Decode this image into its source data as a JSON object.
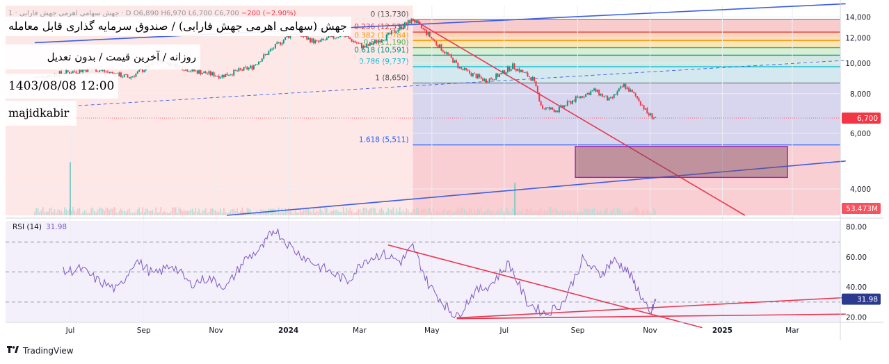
{
  "header": {
    "ticker_line": "1 · جهش سهامی اهرمی جهش فارابی · D",
    "ohlc": [
      "O6,890",
      "H6,970",
      "L6,700",
      "C6,700",
      "−200 (−2.90%)"
    ]
  },
  "overlay": {
    "title": "جهش (سهامی اهرمی جهش فارابی) / صندوق سرمایه گذاری قابل معامله",
    "subtitle": "روزانه / آخرین قیمت / بدون تعدیل",
    "datetime": "1403/08/08 12:00",
    "author": "majidkabir"
  },
  "footer": {
    "brand": "TradingView"
  },
  "colors": {
    "price_line": "#f23645",
    "trend_blue": "#3d5ee1",
    "trend_red": "#e8384f",
    "rsi_line": "#7e57c2",
    "box_stroke": "#9c27b0",
    "up": "#089981",
    "down": "#f23645"
  },
  "chart_data": [
    {
      "type": "candlestick",
      "scale": "log",
      "ylim": [
        3300,
        15200
      ],
      "y_ticks": [
        "14,000",
        "12,000",
        "10,000",
        "8,000",
        "6,000",
        "4,000"
      ],
      "y_tick_values": [
        14000,
        12000,
        10000,
        8000,
        6000,
        4000
      ],
      "x_ticks": [
        "Jul",
        "Sep",
        "Nov",
        "2024",
        "Mar",
        "May",
        "Jul",
        "Sep",
        "Nov",
        "2025",
        "Mar"
      ],
      "x_tick_dates": [
        "2023-07-01",
        "2023-09-01",
        "2023-11-01",
        "2024-01-01",
        "2024-03-01",
        "2024-05-01",
        "2024-07-01",
        "2024-09-01",
        "2024-11-01",
        "2025-01-01",
        "2025-03-01"
      ],
      "last_price_label": "6,700",
      "last_price": 6700,
      "volume_label": "53.473M",
      "path": [
        [
          "2023-06-01",
          9000
        ],
        [
          "2023-07-20",
          9600
        ],
        [
          "2023-08-20",
          9000
        ],
        [
          "2023-09-15",
          10200
        ],
        [
          "2023-10-10",
          9500
        ],
        [
          "2023-11-05",
          9100
        ],
        [
          "2023-12-01",
          9700
        ],
        [
          "2023-12-20",
          11200
        ],
        [
          "2024-01-05",
          12500
        ],
        [
          "2024-01-25",
          11600
        ],
        [
          "2024-02-15",
          12300
        ],
        [
          "2024-03-05",
          11200
        ],
        [
          "2024-03-25",
          12200
        ],
        [
          "2024-04-15",
          13730
        ],
        [
          "2024-05-05",
          11500
        ],
        [
          "2024-05-25",
          9600
        ],
        [
          "2024-06-15",
          8800
        ],
        [
          "2024-06-28",
          9200
        ],
        [
          "2024-07-08",
          9800
        ],
        [
          "2024-07-25",
          8900
        ],
        [
          "2024-08-02",
          7200
        ],
        [
          "2024-08-15",
          7100
        ],
        [
          "2024-08-30",
          7700
        ],
        [
          "2024-09-15",
          8200
        ],
        [
          "2024-09-28",
          7600
        ],
        [
          "2024-10-10",
          8500
        ],
        [
          "2024-10-22",
          7700
        ],
        [
          "2024-10-30",
          6900
        ],
        [
          "2024-11-06",
          6700
        ]
      ],
      "volume_spikes": [
        [
          "2023-07-01",
          0.85
        ],
        [
          "2024-07-10",
          0.52
        ]
      ],
      "fibonacci": [
        {
          "level": "0",
          "label": "0 (13,730)",
          "price": 13730,
          "fill": "#f7c6c6",
          "line": "#787b86",
          "label_color": "#555555"
        },
        {
          "level": "0.236",
          "label": "0.236 (12,531)",
          "price": 12531,
          "fill": "#f9d2b2",
          "line": "#e53935",
          "label_color": "#e53935"
        },
        {
          "level": "0.382",
          "label": "0.382 (11,784)",
          "price": 11784,
          "fill": "#fbe3b0",
          "line": "#ff9800",
          "label_color": "#ff9800"
        },
        {
          "level": "0.5",
          "label": "0.5 (11,190)",
          "price": 11190,
          "fill": "#d4ecd2",
          "line": "#4caf50",
          "label_color": "#4caf50"
        },
        {
          "level": "0.618",
          "label": "0.618 (10,591)",
          "price": 10591,
          "fill": "#cfe6e0",
          "line": "#089981",
          "label_color": "#089981"
        },
        {
          "level": "0.786",
          "label": "0.786 (9,737)",
          "price": 9737,
          "fill": "#cfe5ee",
          "line": "#00bcd4",
          "label_color": "#00bcd4"
        },
        {
          "level": "1",
          "label": "1 (8,650)",
          "price": 8650,
          "fill": "#d4d0ec",
          "line": "#787b86",
          "label_color": "#555555"
        },
        {
          "level": "1.618",
          "label": "1.618 (5,511)",
          "price": 5511,
          "fill": null,
          "line": "#2962ff",
          "label_color": "#2962ff"
        }
      ],
      "fib_start": "2024-04-15",
      "trendlines": [
        {
          "color": "blue",
          "dashed": false,
          "from": [
            "2023-06-01",
            11600
          ],
          "to": [
            "2025-04-15",
            15400
          ]
        },
        {
          "color": "blue",
          "dashed": true,
          "from": [
            "2023-06-01",
            7200
          ],
          "to": [
            "2025-04-15",
            10200
          ]
        },
        {
          "color": "blue",
          "dashed": false,
          "from": [
            "2023-11-10",
            3300
          ],
          "to": [
            "2025-04-15",
            4900
          ]
        },
        {
          "color": "red",
          "dashed": false,
          "from": [
            "2024-04-15",
            13730
          ],
          "to": [
            "2025-01-20",
            3300
          ]
        }
      ],
      "box": {
        "from": [
          "2024-08-30",
          5450
        ],
        "to": [
          "2025-02-25",
          4350
        ]
      }
    },
    {
      "type": "line",
      "title": "RSI (14)",
      "value_label": "31.98",
      "value": 31.98,
      "ylim": [
        17,
        84
      ],
      "y_ticks": [
        "80.00",
        "60.00",
        "40.00",
        "20.00"
      ],
      "y_tick_values": [
        80,
        60,
        40,
        20
      ],
      "levels": [
        70,
        50,
        30
      ],
      "series": [
        {
          "values": [
            [
              "2023-06-25",
              50
            ],
            [
              "2023-07-10",
              52
            ],
            [
              "2023-07-25",
              44
            ],
            [
              "2023-08-10",
              38
            ],
            [
              "2023-08-25",
              58
            ],
            [
              "2023-09-10",
              48
            ],
            [
              "2023-09-25",
              55
            ],
            [
              "2023-10-10",
              42
            ],
            [
              "2023-10-25",
              46
            ],
            [
              "2023-11-10",
              40
            ],
            [
              "2023-11-25",
              58
            ],
            [
              "2023-12-10",
              66
            ],
            [
              "2023-12-20",
              79
            ],
            [
              "2024-01-05",
              65
            ],
            [
              "2024-01-20",
              57
            ],
            [
              "2024-02-05",
              50
            ],
            [
              "2024-02-20",
              44
            ],
            [
              "2024-03-05",
              58
            ],
            [
              "2024-03-20",
              62
            ],
            [
              "2024-04-05",
              57
            ],
            [
              "2024-04-15",
              67
            ],
            [
              "2024-04-28",
              42
            ],
            [
              "2024-05-12",
              28
            ],
            [
              "2024-05-22",
              20
            ],
            [
              "2024-06-05",
              36
            ],
            [
              "2024-06-20",
              42
            ],
            [
              "2024-07-05",
              56
            ],
            [
              "2024-07-20",
              30
            ],
            [
              "2024-08-05",
              22
            ],
            [
              "2024-08-20",
              30
            ],
            [
              "2024-09-05",
              58
            ],
            [
              "2024-09-20",
              48
            ],
            [
              "2024-10-01",
              58
            ],
            [
              "2024-10-12",
              52
            ],
            [
              "2024-10-22",
              38
            ],
            [
              "2024-11-01",
              21
            ],
            [
              "2024-11-06",
              32
            ]
          ]
        }
      ],
      "trendlines": [
        {
          "color": "red",
          "from": [
            "2024-03-25",
            68
          ],
          "to": [
            "2024-12-15",
            13
          ]
        },
        {
          "color": "red",
          "from": [
            "2024-05-22",
            19.5
          ],
          "to": [
            "2025-04-15",
            33
          ]
        },
        {
          "color": "red",
          "from": [
            "2024-05-22",
            19
          ],
          "to": [
            "2025-04-15",
            22
          ]
        }
      ]
    }
  ]
}
